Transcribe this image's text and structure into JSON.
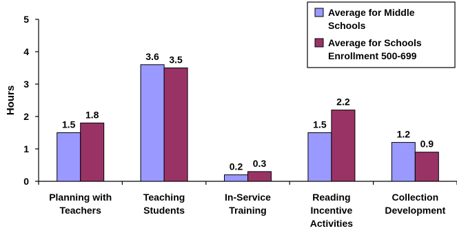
{
  "chart_data": {
    "type": "bar",
    "categories": [
      [
        "Planning with",
        "Teachers"
      ],
      [
        "Teaching",
        "Students"
      ],
      [
        "In-Service",
        "Training"
      ],
      [
        "Reading",
        "Incentive",
        "Activities"
      ],
      [
        "Collection",
        "Development"
      ]
    ],
    "series": [
      {
        "name": "Average for Middle Schools",
        "legend_lines": [
          "Average for Middle",
          "Schools"
        ],
        "color": "#9999ff",
        "values": [
          1.5,
          3.6,
          0.2,
          1.5,
          1.2
        ],
        "labels": [
          "1.5",
          "3.6",
          "0.2",
          "1.5",
          "1.2"
        ]
      },
      {
        "name": "Average for Schools Enrollment 500-699",
        "legend_lines": [
          "Average for Schools",
          "Enrollment 500-699"
        ],
        "color": "#993366",
        "values": [
          1.8,
          3.5,
          0.3,
          2.2,
          0.9
        ],
        "labels": [
          "1.8",
          "3.5",
          "0.3",
          "2.2",
          "0.9"
        ]
      }
    ],
    "ylabel": "Hours",
    "ylim": [
      0,
      5
    ],
    "yticks": [
      "0",
      "1",
      "2",
      "3",
      "4",
      "5"
    ],
    "grid": false,
    "legend_position": "top-right"
  }
}
